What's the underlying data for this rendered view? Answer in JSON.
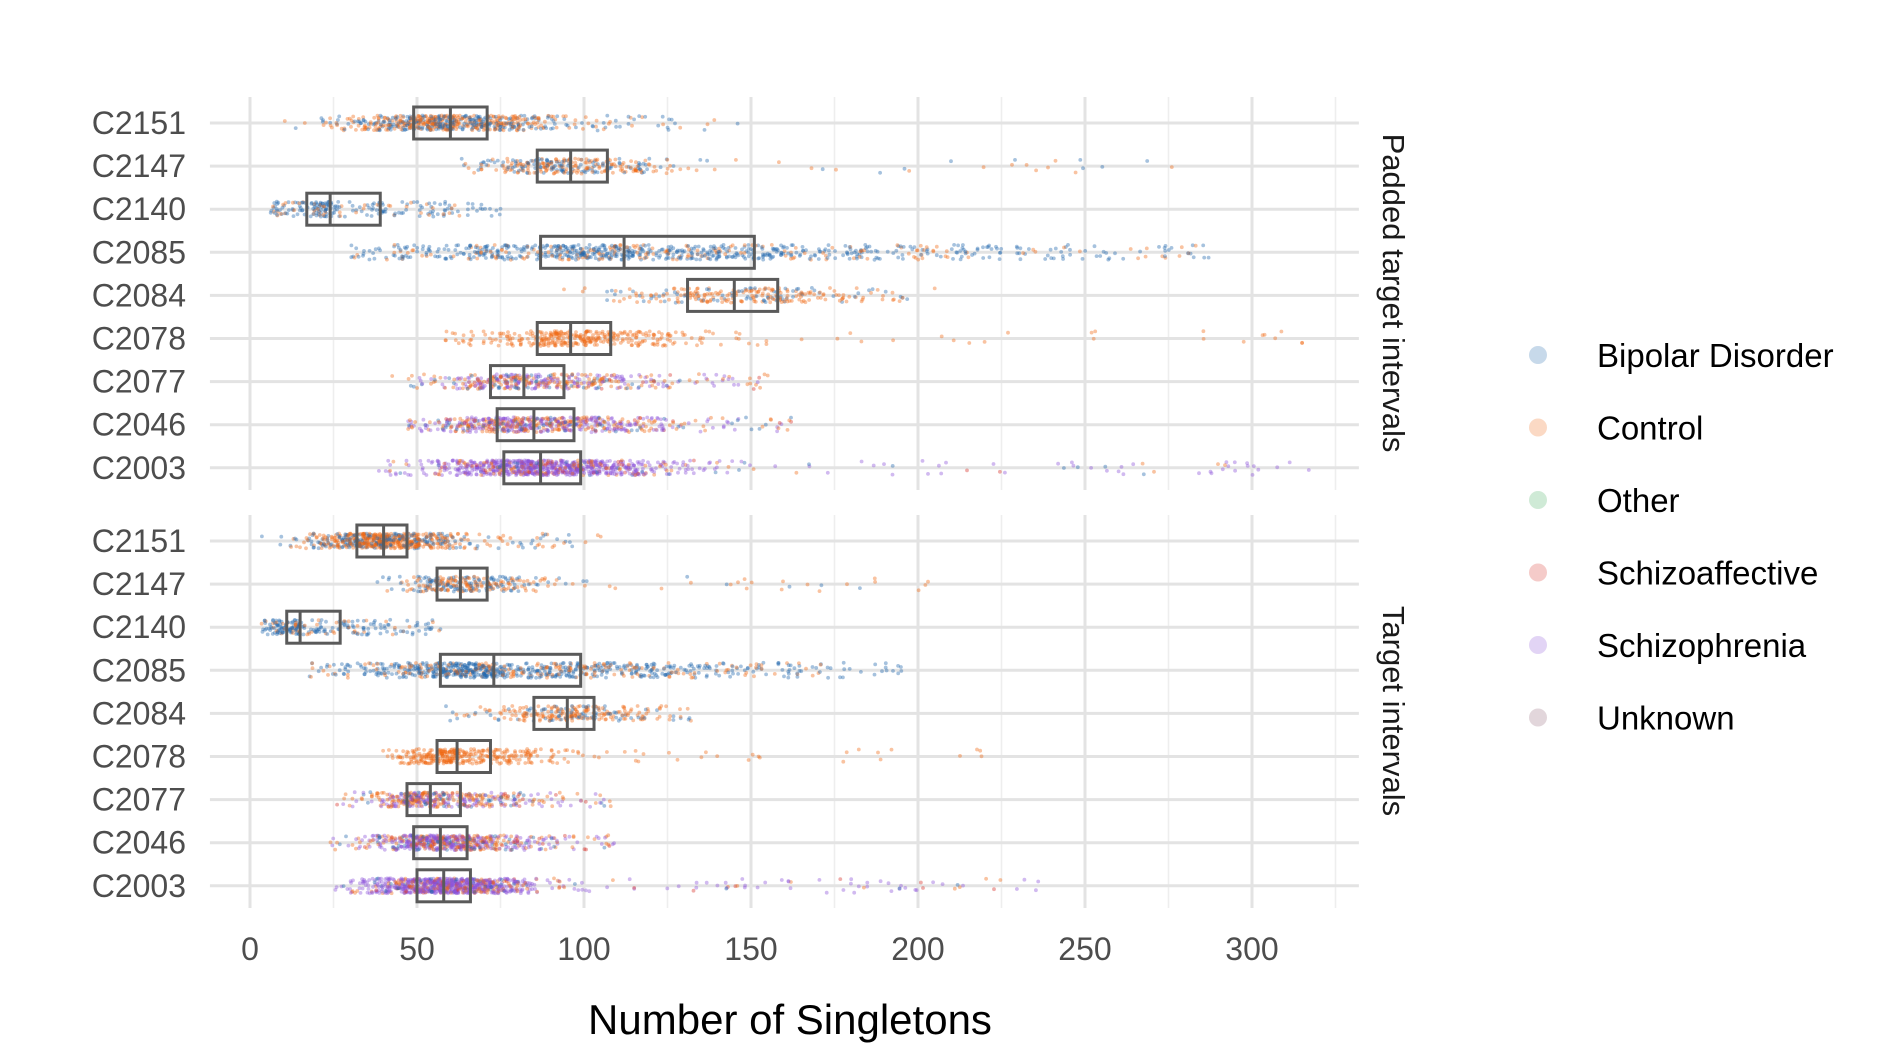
{
  "chart_data": {
    "type": "scatter",
    "subtype": "jittered strip plot with boxplots, two facets",
    "xlabel": "Number of Singletons",
    "xlim": [
      -12,
      332
    ],
    "x_ticks": [
      0,
      50,
      100,
      150,
      200,
      250,
      300
    ],
    "x_tick_labels": [
      "0",
      "50",
      "100",
      "150",
      "200",
      "250",
      "300"
    ],
    "grid": true,
    "legend_position": "right",
    "groups": [
      {
        "name": "Bipolar Disorder",
        "color": "#2166ac"
      },
      {
        "name": "Control",
        "color": "#f16913"
      },
      {
        "name": "Other",
        "color": "#41ab5d"
      },
      {
        "name": "Schizoaffective",
        "color": "#d73027"
      },
      {
        "name": "Schizophrenia",
        "color": "#8c52d9"
      },
      {
        "name": "Unknown",
        "color": "#8c5a6e"
      }
    ],
    "categories": [
      "C2151",
      "C2147",
      "C2140",
      "C2085",
      "C2084",
      "C2078",
      "C2077",
      "C2046",
      "C2003"
    ],
    "facets": [
      {
        "label": "Padded target intervals",
        "boxes": [
          {
            "category": "C2151",
            "q1": 49,
            "median": 60,
            "q3": 71,
            "min": 8,
            "max": 146,
            "mix": [
              0.45,
              0.55,
              0,
              0,
              0,
              0
            ],
            "n": 650
          },
          {
            "category": "C2147",
            "q1": 86,
            "median": 96,
            "q3": 107,
            "min": 58,
            "max": 276,
            "mix": [
              0.45,
              0.55,
              0,
              0,
              0,
              0
            ],
            "n": 320
          },
          {
            "category": "C2140",
            "q1": 17,
            "median": 24,
            "q3": 39,
            "min": 5,
            "max": 75,
            "mix": [
              0.8,
              0.2,
              0,
              0,
              0,
              0
            ],
            "n": 220
          },
          {
            "category": "C2085",
            "q1": 87,
            "median": 112,
            "q3": 151,
            "min": 30,
            "max": 287,
            "mix": [
              0.75,
              0.25,
              0,
              0,
              0,
              0
            ],
            "n": 800
          },
          {
            "category": "C2084",
            "q1": 131,
            "median": 145,
            "q3": 158,
            "min": 83,
            "max": 205,
            "mix": [
              0.3,
              0.7,
              0,
              0,
              0,
              0
            ],
            "n": 260
          },
          {
            "category": "C2078",
            "q1": 86,
            "median": 96,
            "q3": 108,
            "min": 58,
            "max": 315,
            "mix": [
              0,
              1,
              0,
              0,
              0,
              0
            ],
            "n": 360
          },
          {
            "category": "C2077",
            "q1": 72,
            "median": 82,
            "q3": 94,
            "min": 42,
            "max": 155,
            "mix": [
              0.15,
              0.45,
              0,
              0.05,
              0.35,
              0
            ],
            "n": 420
          },
          {
            "category": "C2046",
            "q1": 74,
            "median": 85,
            "q3": 97,
            "min": 46,
            "max": 162,
            "mix": [
              0.1,
              0.35,
              0,
              0.05,
              0.5,
              0
            ],
            "n": 620
          },
          {
            "category": "C2003",
            "q1": 76,
            "median": 87,
            "q3": 99,
            "min": 38,
            "max": 317,
            "mix": [
              0.05,
              0.15,
              0,
              0.05,
              0.75,
              0
            ],
            "n": 900
          }
        ]
      },
      {
        "label": "Target intervals",
        "boxes": [
          {
            "category": "C2151",
            "q1": 32,
            "median": 40,
            "q3": 47,
            "min": 3,
            "max": 105,
            "mix": [
              0.35,
              0.65,
              0,
              0,
              0,
              0
            ],
            "n": 650
          },
          {
            "category": "C2147",
            "q1": 56,
            "median": 63,
            "q3": 71,
            "min": 38,
            "max": 203,
            "mix": [
              0.45,
              0.55,
              0,
              0,
              0,
              0
            ],
            "n": 300
          },
          {
            "category": "C2140",
            "q1": 11,
            "median": 15,
            "q3": 27,
            "min": 3,
            "max": 57,
            "mix": [
              0.8,
              0.2,
              0,
              0,
              0,
              0
            ],
            "n": 220
          },
          {
            "category": "C2085",
            "q1": 57,
            "median": 73,
            "q3": 99,
            "min": 17,
            "max": 195,
            "mix": [
              0.75,
              0.25,
              0,
              0,
              0,
              0
            ],
            "n": 800
          },
          {
            "category": "C2084",
            "q1": 85,
            "median": 95,
            "q3": 103,
            "min": 57,
            "max": 132,
            "mix": [
              0.3,
              0.7,
              0,
              0,
              0,
              0
            ],
            "n": 260
          },
          {
            "category": "C2078",
            "q1": 56,
            "median": 62,
            "q3": 72,
            "min": 38,
            "max": 219,
            "mix": [
              0,
              1,
              0,
              0,
              0,
              0
            ],
            "n": 360
          },
          {
            "category": "C2077",
            "q1": 47,
            "median": 54,
            "q3": 63,
            "min": 26,
            "max": 108,
            "mix": [
              0.15,
              0.45,
              0,
              0.05,
              0.35,
              0
            ],
            "n": 420
          },
          {
            "category": "C2046",
            "q1": 49,
            "median": 57,
            "q3": 65,
            "min": 24,
            "max": 109,
            "mix": [
              0.1,
              0.35,
              0,
              0.05,
              0.5,
              0
            ],
            "n": 620
          },
          {
            "category": "C2003",
            "q1": 50,
            "median": 58,
            "q3": 66,
            "min": 24,
            "max": 236,
            "mix": [
              0.05,
              0.15,
              0,
              0.05,
              0.75,
              0
            ],
            "n": 900
          }
        ]
      }
    ]
  }
}
